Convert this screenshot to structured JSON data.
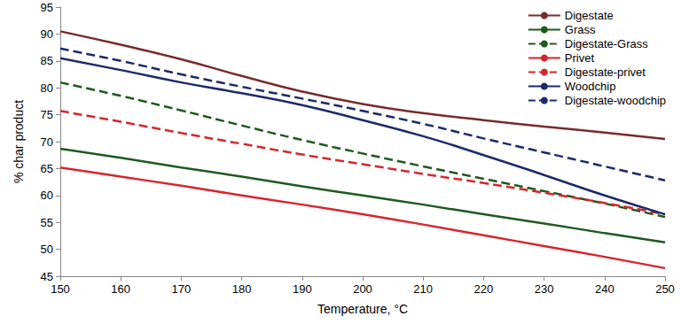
{
  "chart_data": {
    "type": "line",
    "x_label": "Temperature, °C",
    "y_label": "% char product",
    "x": [
      150,
      160,
      170,
      180,
      190,
      200,
      210,
      220,
      230,
      240,
      250
    ],
    "series": [
      {
        "name": "Digestate",
        "color": "#7a2a2a",
        "line_style": "solid",
        "values": [
          90.5,
          88,
          85.3,
          82.2,
          79.3,
          77,
          75.3,
          74,
          72.8,
          71.7,
          70.5
        ]
      },
      {
        "name": "Grass",
        "color": "#1e5a1e",
        "line_style": "solid",
        "values": [
          68.7,
          67,
          65.2,
          63.5,
          61.7,
          60,
          58.3,
          56.5,
          54.8,
          53,
          51.3
        ]
      },
      {
        "name": "Digestate-Grass",
        "color": "#1e5a1e",
        "line_style": "dashed",
        "values": [
          81,
          78.5,
          75.8,
          73,
          70.3,
          67.8,
          65.4,
          63.1,
          60.8,
          58.5,
          56
        ]
      },
      {
        "name": "Privet",
        "color": "#d7262b",
        "line_style": "solid",
        "values": [
          65.2,
          63.5,
          61.8,
          60,
          58.3,
          56.5,
          54.6,
          52.6,
          50.6,
          48.6,
          46.5
        ]
      },
      {
        "name": "Digestate-privet",
        "color": "#d7262b",
        "line_style": "dashed",
        "values": [
          75.7,
          73.7,
          71.6,
          69.6,
          67.6,
          65.8,
          64,
          62.3,
          60.5,
          58.6,
          56.5
        ]
      },
      {
        "name": "Woodchip",
        "color": "#1b2a6b",
        "line_style": "solid",
        "values": [
          85.5,
          83.3,
          81,
          79,
          76.8,
          74,
          71,
          67.5,
          63.8,
          60,
          56.5
        ]
      },
      {
        "name": "Digestate-woodchip",
        "color": "#1b2a6b",
        "line_style": "dashed",
        "values": [
          87.3,
          85,
          82.5,
          80.2,
          78,
          75.7,
          73.3,
          70.6,
          68,
          65.4,
          62.8
        ]
      }
    ],
    "xlim": [
      150,
      250
    ],
    "xticks": [
      150,
      160,
      170,
      180,
      190,
      200,
      210,
      220,
      230,
      240,
      250
    ],
    "ylim": [
      45,
      95
    ],
    "yticks": [
      45,
      50,
      55,
      60,
      65,
      70,
      75,
      80,
      85,
      90,
      95
    ],
    "grid": false,
    "legend": "upper right"
  }
}
